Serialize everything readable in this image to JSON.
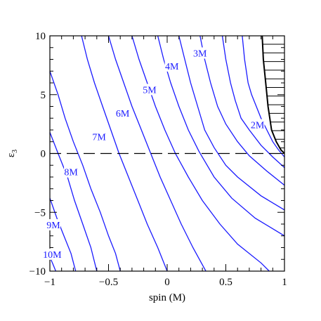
{
  "chart_data": {
    "type": "line",
    "title": "",
    "xlabel": "spin (M)",
    "ylabel": "ε",
    "ylabel_subscript": "3",
    "xlim": [
      -1,
      1
    ],
    "ylim": [
      -10,
      10
    ],
    "x_ticks": [
      "−1",
      "−0.5",
      "0",
      "0.5",
      "1"
    ],
    "y_ticks": [
      "−10",
      "−5",
      "0",
      "5",
      "10"
    ],
    "grid": false,
    "legend": "none",
    "line_color": "#1a1aff",
    "excluded_region": "top-right, hatched, black boundary",
    "reference_line": {
      "y": 0,
      "style": "dashed"
    },
    "series": [
      {
        "name": "2M",
        "label_at": [
          0.77,
          2.2
        ],
        "points": [
          [
            0.64,
            10
          ],
          [
            0.66,
            8
          ],
          [
            0.69,
            6
          ],
          [
            0.72,
            5
          ],
          [
            0.76,
            4
          ],
          [
            0.8,
            3
          ],
          [
            0.85,
            2
          ],
          [
            0.9,
            1
          ],
          [
            0.95,
            0.3
          ],
          [
            1,
            -0.3
          ]
        ]
      },
      {
        "name": "3M",
        "label_at": [
          0.28,
          8.3
        ],
        "points": [
          [
            0.47,
            10
          ],
          [
            0.5,
            8
          ],
          [
            0.54,
            6
          ],
          [
            0.58,
            4.5
          ],
          [
            0.63,
            3
          ],
          [
            0.7,
            2
          ],
          [
            0.8,
            0.7
          ],
          [
            0.9,
            -0.3
          ],
          [
            1,
            -1.2
          ]
        ]
      },
      {
        "name": "4M",
        "label_at": [
          0.04,
          7.2
        ],
        "points": [
          [
            0.28,
            10
          ],
          [
            0.32,
            8
          ],
          [
            0.37,
            6
          ],
          [
            0.43,
            4
          ],
          [
            0.5,
            2.5
          ],
          [
            0.6,
            1
          ],
          [
            0.7,
            -0.2
          ],
          [
            0.85,
            -1.5
          ],
          [
            1,
            -2.7
          ]
        ]
      },
      {
        "name": "5M",
        "label_at": [
          -0.15,
          5.2
        ],
        "points": [
          [
            0.1,
            10
          ],
          [
            0.15,
            8
          ],
          [
            0.2,
            6
          ],
          [
            0.26,
            4
          ],
          [
            0.32,
            2
          ],
          [
            0.4,
            0.5
          ],
          [
            0.5,
            -1
          ],
          [
            0.6,
            -2
          ],
          [
            0.8,
            -3.6
          ],
          [
            1,
            -4.8
          ]
        ]
      },
      {
        "name": "6M",
        "label_at": [
          -0.38,
          3.2
        ],
        "points": [
          [
            -0.08,
            10
          ],
          [
            -0.03,
            8
          ],
          [
            0.03,
            6
          ],
          [
            0.1,
            4
          ],
          [
            0.18,
            2
          ],
          [
            0.27,
            0.2
          ],
          [
            0.4,
            -2
          ],
          [
            0.55,
            -3.8
          ],
          [
            0.75,
            -5.5
          ],
          [
            1,
            -7
          ]
        ]
      },
      {
        "name": "7M",
        "label_at": [
          -0.58,
          1.2
        ],
        "points": [
          [
            -0.3,
            10
          ],
          [
            -0.24,
            8
          ],
          [
            -0.17,
            6
          ],
          [
            -0.1,
            4
          ],
          [
            -0.02,
            2
          ],
          [
            0.07,
            0
          ],
          [
            0.18,
            -2
          ],
          [
            0.3,
            -4
          ],
          [
            0.45,
            -6
          ],
          [
            0.6,
            -7.7
          ],
          [
            0.8,
            -9.3
          ],
          [
            0.87,
            -10
          ]
        ]
      },
      {
        "name": "8M",
        "label_at": [
          -0.82,
          -1.8
        ],
        "points": [
          [
            -0.5,
            10
          ],
          [
            -0.44,
            8
          ],
          [
            -0.37,
            6
          ],
          [
            -0.3,
            4
          ],
          [
            -0.22,
            2
          ],
          [
            -0.14,
            0
          ],
          [
            -0.06,
            -2
          ],
          [
            0.03,
            -4
          ],
          [
            0.12,
            -6
          ],
          [
            0.22,
            -8
          ],
          [
            0.33,
            -10
          ]
        ]
      },
      {
        "name": "9M",
        "label_at": [
          -0.97,
          -6.3
        ],
        "points": [
          [
            -0.73,
            10
          ],
          [
            -0.68,
            8
          ],
          [
            -0.62,
            6
          ],
          [
            -0.55,
            4
          ],
          [
            -0.48,
            2
          ],
          [
            -0.41,
            0
          ],
          [
            -0.33,
            -2
          ],
          [
            -0.25,
            -4
          ],
          [
            -0.17,
            -6
          ],
          [
            -0.08,
            -8
          ],
          [
            0,
            -10
          ]
        ]
      },
      {
        "name": "10M",
        "label_at": [
          -0.98,
          -8.8
        ],
        "points": [
          [
            -1,
            7
          ],
          [
            -0.93,
            5
          ],
          [
            -0.87,
            3
          ],
          [
            -0.8,
            1
          ],
          [
            -0.72,
            -1
          ],
          [
            -0.65,
            -3
          ],
          [
            -0.57,
            -5
          ],
          [
            -0.5,
            -7
          ],
          [
            -0.44,
            -8.5
          ],
          [
            -0.4,
            -10
          ]
        ]
      },
      {
        "name": "",
        "points": [
          [
            -1,
            1.8
          ],
          [
            -0.93,
            0
          ],
          [
            -0.85,
            -2
          ],
          [
            -0.79,
            -4
          ],
          [
            -0.72,
            -6
          ],
          [
            -0.65,
            -8
          ],
          [
            -0.6,
            -10
          ]
        ]
      },
      {
        "name": "",
        "points": [
          [
            -1,
            -3.8
          ],
          [
            -0.94,
            -5.5
          ],
          [
            -0.88,
            -7
          ],
          [
            -0.82,
            -8.5
          ],
          [
            -0.78,
            -10
          ]
        ]
      },
      {
        "name": "",
        "points": [
          [
            -1,
            -8.8
          ],
          [
            -0.97,
            -9.5
          ],
          [
            -0.95,
            -10
          ]
        ]
      }
    ],
    "boundary": [
      [
        0.81,
        10
      ],
      [
        0.82,
        8
      ],
      [
        0.84,
        6
      ],
      [
        0.86,
        4
      ],
      [
        0.89,
        2
      ],
      [
        0.93,
        1
      ],
      [
        0.97,
        0.3
      ],
      [
        1,
        0
      ]
    ]
  }
}
